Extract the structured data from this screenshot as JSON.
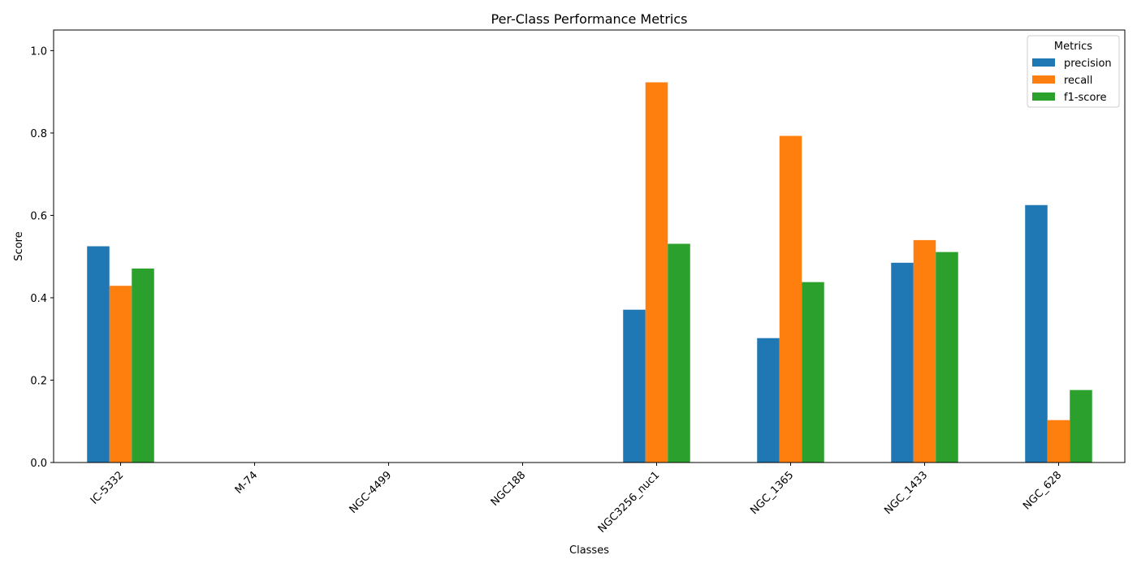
{
  "chart_data": {
    "type": "bar",
    "title": "Per-Class Performance Metrics",
    "xlabel": "Classes",
    "ylabel": "Score",
    "ylim": [
      0,
      1.05
    ],
    "yticks": [
      "0.0",
      "0.2",
      "0.4",
      "0.6",
      "0.8",
      "1.0"
    ],
    "categories": [
      "IC-5332",
      "M-74",
      "NGC-4499",
      "NGC188",
      "NGC3256_nuc1",
      "NGC_1365",
      "NGC_1433",
      "NGC_628"
    ],
    "series": [
      {
        "name": "precision",
        "color": "#1f77b4",
        "values": [
          0.525,
          0.0,
          0.0,
          0.0,
          0.371,
          0.302,
          0.485,
          0.625
        ]
      },
      {
        "name": "recall",
        "color": "#ff7f0e",
        "values": [
          0.429,
          0.0,
          0.0,
          0.0,
          0.923,
          0.793,
          0.54,
          0.103
        ]
      },
      {
        "name": "f1-score",
        "color": "#2ca02c",
        "values": [
          0.471,
          0.0,
          0.0,
          0.0,
          0.531,
          0.438,
          0.511,
          0.176
        ]
      }
    ],
    "legend": {
      "title": "Metrics",
      "placement": "top-right"
    },
    "grid": false
  }
}
